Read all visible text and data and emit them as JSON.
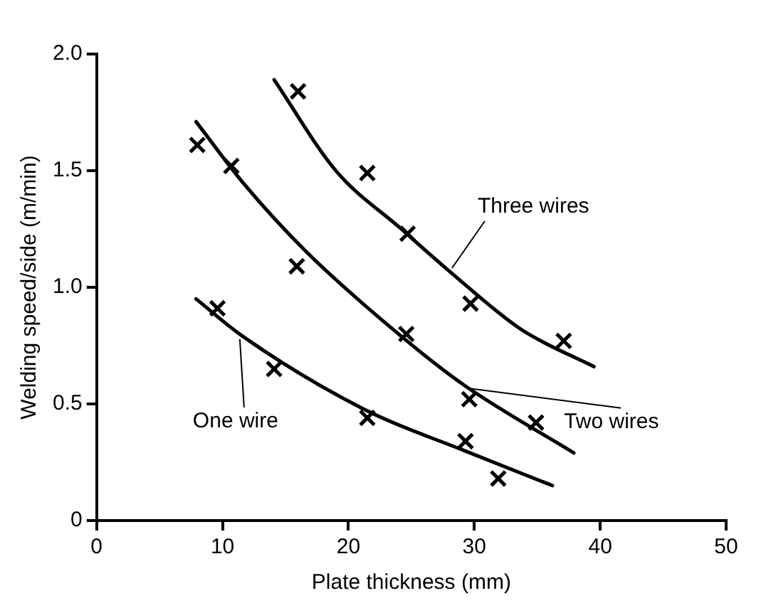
{
  "chart_data": {
    "type": "scatter",
    "xlabel": "Plate thickness (mm)",
    "ylabel": "Welding speed/side (m/min)",
    "xlim": [
      0,
      50
    ],
    "xticks": [
      0,
      10,
      20,
      30,
      40,
      50
    ],
    "ylim": [
      0,
      2
    ],
    "yticks": [
      0,
      {
        "value": 0.5,
        "label": "0.5"
      },
      {
        "value": 1,
        "label": "1.0"
      },
      {
        "value": 1.5,
        "label": "1.5"
      },
      {
        "value": 2,
        "label": "2.0"
      }
    ],
    "grid": false,
    "legend": false,
    "marker": "cross",
    "series": [
      {
        "color": "#000000",
        "x": [
          9.6,
          14.1,
          21.5,
          29.3,
          31.9
        ],
        "values": [
          0.91,
          0.65,
          0.44,
          0.34,
          0.18
        ]
      },
      {
        "color": "#000000",
        "x": [
          8.0,
          10.7,
          15.9,
          24.6,
          29.6,
          34.9
        ],
        "values": [
          1.61,
          1.52,
          1.09,
          0.8,
          0.52,
          0.42
        ]
      },
      {
        "color": "#000000",
        "x": [
          16.0,
          21.5,
          24.7,
          29.7,
          37.1
        ],
        "values": [
          1.84,
          1.49,
          1.23,
          0.93,
          0.77
        ]
      },
      {
        "type": "line",
        "name": "One wire",
        "color": "#000000",
        "line_style": "solid",
        "marker": "none",
        "x": [
          7.9,
          11.6,
          21.5,
          29.2,
          36.2
        ],
        "values": [
          0.95,
          0.79,
          0.47,
          0.3,
          0.15
        ]
      },
      {
        "type": "line",
        "name": "Two wires",
        "color": "#000000",
        "line_style": "solid",
        "marker": "none",
        "x": [
          7.9,
          11.6,
          16.7,
          24.2,
          29.2,
          37.9
        ],
        "values": [
          1.71,
          1.45,
          1.15,
          0.79,
          0.58,
          0.29
        ]
      },
      {
        "type": "line",
        "name": "Three wires",
        "color": "#000000",
        "line_style": "solid",
        "marker": "none",
        "x": [
          14.1,
          19.0,
          24.2,
          28.0,
          33.7,
          39.5
        ],
        "values": [
          1.89,
          1.5,
          1.25,
          1.07,
          0.82,
          0.66
        ]
      }
    ]
  }
}
